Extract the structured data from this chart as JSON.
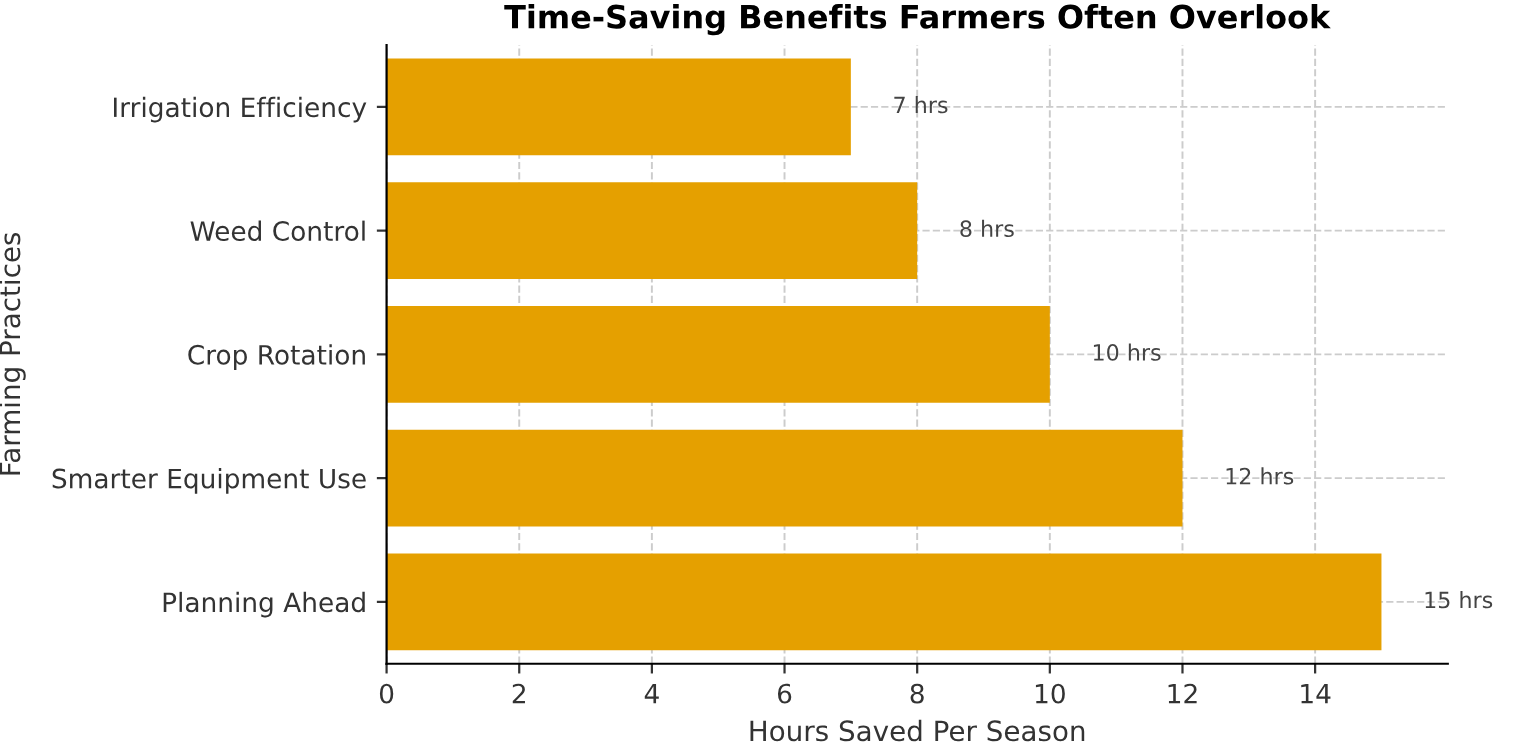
{
  "chart_data": {
    "type": "bar",
    "orientation": "horizontal",
    "title": "Time-Saving Benefits Farmers Often Overlook",
    "xlabel": "Hours Saved Per Season",
    "ylabel": "Farming Practices",
    "categories": [
      "Irrigation Efficiency",
      "Weed Control",
      "Crop Rotation",
      "Smarter Equipment Use",
      "Planning Ahead"
    ],
    "values": [
      7,
      8,
      10,
      12,
      15
    ],
    "color": "#e5a000",
    "value_labels": [
      "7 hrs",
      "8 hrs",
      "10 hrs",
      "12 hrs",
      "15 hrs"
    ],
    "xlim": [
      0,
      16
    ],
    "xticks": [
      0,
      2,
      4,
      6,
      8,
      10,
      12,
      14
    ],
    "grid": true
  }
}
